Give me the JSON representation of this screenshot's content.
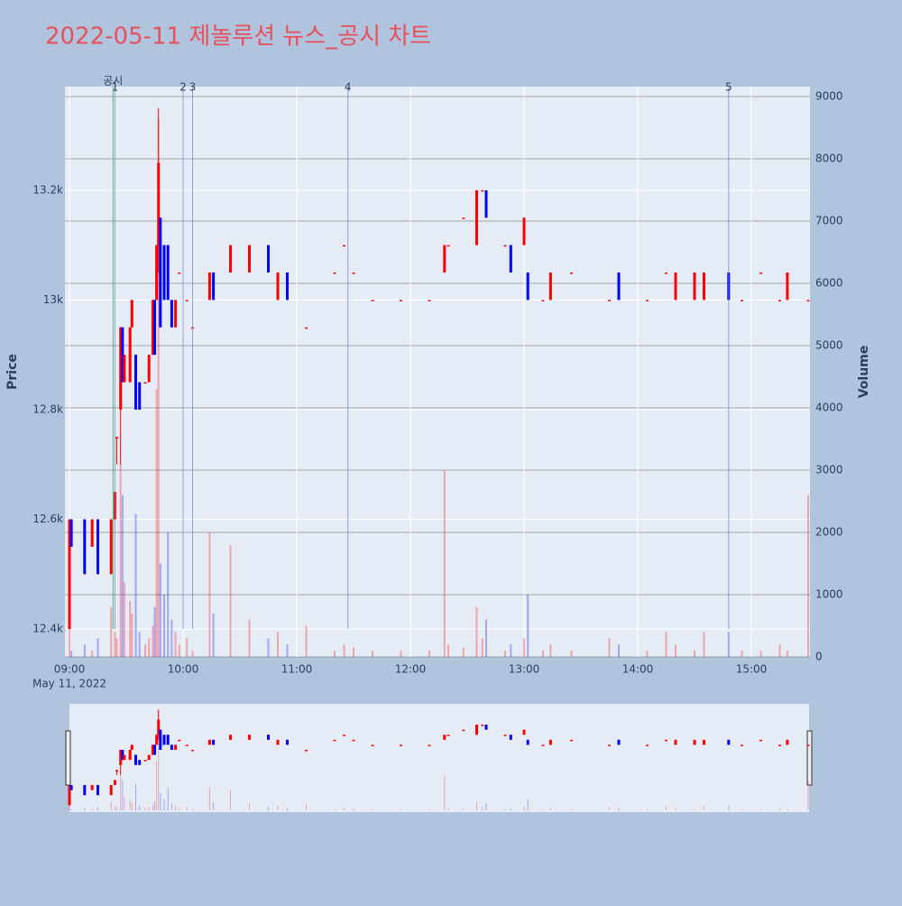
{
  "chart_data": {
    "type": "candlestick",
    "title": "2022-05-11 제놀루션 뉴스_공시 차트",
    "y_label": "Price",
    "y2_label": "Volume",
    "x": [
      "09:00",
      "09:01",
      "09:08",
      "09:12",
      "09:15",
      "09:22",
      "09:24",
      "09:25",
      "09:27",
      "09:28",
      "09:29",
      "09:32",
      "09:33",
      "09:35",
      "09:37",
      "09:40",
      "09:42",
      "09:44",
      "09:45",
      "09:46",
      "09:47",
      "09:48",
      "09:50",
      "09:52",
      "09:54",
      "09:56",
      "09:58",
      "10:02",
      "10:05",
      "10:14",
      "10:16",
      "10:25",
      "10:35",
      "10:45",
      "10:50",
      "10:55",
      "11:05",
      "11:20",
      "11:25",
      "11:30",
      "11:40",
      "11:55",
      "12:10",
      "12:18",
      "12:20",
      "12:28",
      "12:35",
      "12:38",
      "12:40",
      "12:50",
      "12:53",
      "13:00",
      "13:02",
      "13:10",
      "13:14",
      "13:25",
      "13:45",
      "13:50",
      "14:05",
      "14:15",
      "14:20",
      "14:30",
      "14:35",
      "14:48",
      "14:55",
      "15:05",
      "15:15",
      "15:19",
      "15:30"
    ],
    "open": [
      12400,
      12600,
      12600,
      12550,
      12600,
      12500,
      12600,
      12750,
      12800,
      12950,
      12850,
      12850,
      12950,
      12900,
      12850,
      12850,
      12850,
      12900,
      13000,
      13000,
      13100,
      13150,
      13100,
      13100,
      13000,
      12950,
      13050,
      13000,
      12950,
      13000,
      13050,
      13050,
      13050,
      13100,
      13000,
      13050,
      12950,
      13050,
      13100,
      13050,
      13000,
      13000,
      13000,
      13050,
      13100,
      13150,
      13100,
      13200,
      13200,
      13100,
      13100,
      13100,
      13050,
      13000,
      13000,
      13050,
      13000,
      13050,
      13000,
      13050,
      13000,
      13000,
      13000,
      13050,
      13000,
      13050,
      13000,
      13000,
      13000
    ],
    "high": [
      12600,
      12600,
      12600,
      12600,
      12600,
      12600,
      12650,
      12750,
      12950,
      12950,
      12900,
      12950,
      13000,
      12900,
      12850,
      12850,
      12900,
      13000,
      13000,
      13100,
      13350,
      13150,
      13100,
      13100,
      13000,
      13000,
      13050,
      13000,
      12950,
      13050,
      13050,
      13100,
      13100,
      13100,
      13050,
      13050,
      12950,
      13050,
      13100,
      13050,
      13000,
      13000,
      13000,
      13100,
      13100,
      13150,
      13200,
      13200,
      13200,
      13100,
      13100,
      13150,
      13050,
      13000,
      13050,
      13050,
      13000,
      13050,
      13000,
      13050,
      13050,
      13050,
      13050,
      13050,
      13000,
      13050,
      13000,
      13050,
      13000
    ],
    "low": [
      12400,
      12550,
      12500,
      12550,
      12500,
      12500,
      12600,
      12700,
      12700,
      12850,
      12850,
      12850,
      12950,
      12800,
      12800,
      12850,
      12850,
      12900,
      12900,
      13000,
      13050,
      12950,
      13000,
      13000,
      12950,
      12950,
      13050,
      13000,
      12950,
      13000,
      13000,
      13050,
      13050,
      13050,
      13000,
      13000,
      12950,
      13050,
      13100,
      13050,
      13000,
      13000,
      13000,
      13050,
      13100,
      13150,
      13100,
      13200,
      13150,
      13100,
      13050,
      13100,
      13000,
      13000,
      13000,
      13050,
      13000,
      13000,
      13000,
      13050,
      13000,
      13000,
      13000,
      13000,
      13000,
      13050,
      13000,
      13000,
      13000
    ],
    "close": [
      12600,
      12550,
      12500,
      12600,
      12500,
      12600,
      12650,
      12750,
      12950,
      12850,
      12900,
      12950,
      13000,
      12800,
      12800,
      12850,
      12900,
      13000,
      12900,
      13100,
      13250,
      12950,
      13000,
      13000,
      12950,
      13000,
      13050,
      13000,
      12950,
      13050,
      13000,
      13100,
      13100,
      13050,
      13050,
      13000,
      12950,
      13050,
      13100,
      13050,
      13000,
      13000,
      13000,
      13100,
      13100,
      13150,
      13200,
      13200,
      13150,
      13100,
      13050,
      13150,
      13000,
      13000,
      13050,
      13050,
      13000,
      13000,
      13000,
      13050,
      13050,
      13050,
      13050,
      13000,
      13000,
      13050,
      13000,
      13050,
      13000
    ],
    "volume": [
      500,
      100,
      200,
      100,
      300,
      800,
      400,
      300,
      3100,
      2600,
      1200,
      900,
      700,
      2300,
      400,
      200,
      300,
      500,
      800,
      4300,
      8650,
      1500,
      1000,
      2000,
      600,
      400,
      200,
      300,
      100,
      2000,
      700,
      1800,
      600,
      300,
      400,
      200,
      500,
      100,
      200,
      150,
      100,
      100,
      100,
      3000,
      200,
      150,
      800,
      300,
      600,
      100,
      200,
      300,
      1000,
      100,
      200,
      100,
      300,
      200,
      100,
      400,
      200,
      100,
      400,
      400,
      100,
      100,
      200,
      100,
      2600
    ],
    "colors": {
      "increasing": "#ff0000",
      "decreasing": "#0000ff"
    },
    "xlim": [
      "09:00",
      "15:30"
    ],
    "xticks": [
      "09:00",
      "10:00",
      "11:00",
      "12:00",
      "13:00",
      "14:00",
      "15:00"
    ],
    "x_date_label": "May 11, 2022",
    "ylim": [
      12349,
      13389
    ],
    "yticks": [
      {
        "value": 12400,
        "label": "12.4k"
      },
      {
        "value": 12600,
        "label": "12.6k"
      },
      {
        "value": 12800,
        "label": "12.8k"
      },
      {
        "value": 13000,
        "label": "13k"
      },
      {
        "value": 13200,
        "label": "13.2k"
      }
    ],
    "y2lim": [
      0,
      9160
    ],
    "y2ticks": [
      0,
      1000,
      2000,
      3000,
      4000,
      5000,
      6000,
      7000,
      8000,
      9000
    ],
    "annotations": [
      {
        "x": "09:23",
        "label": "공시",
        "color": "#2ca02c"
      },
      {
        "x": "09:24",
        "label": "1",
        "color": "#6a7fd8"
      },
      {
        "x": "10:00",
        "label": "2",
        "color": "#6a7fd8"
      },
      {
        "x": "10:05",
        "label": "3",
        "color": "#6a7fd8"
      },
      {
        "x": "11:27",
        "label": "4",
        "color": "#6a7fd8"
      },
      {
        "x": "14:48",
        "label": "5",
        "color": "#6a7fd8"
      }
    ],
    "rangeslider": true
  }
}
